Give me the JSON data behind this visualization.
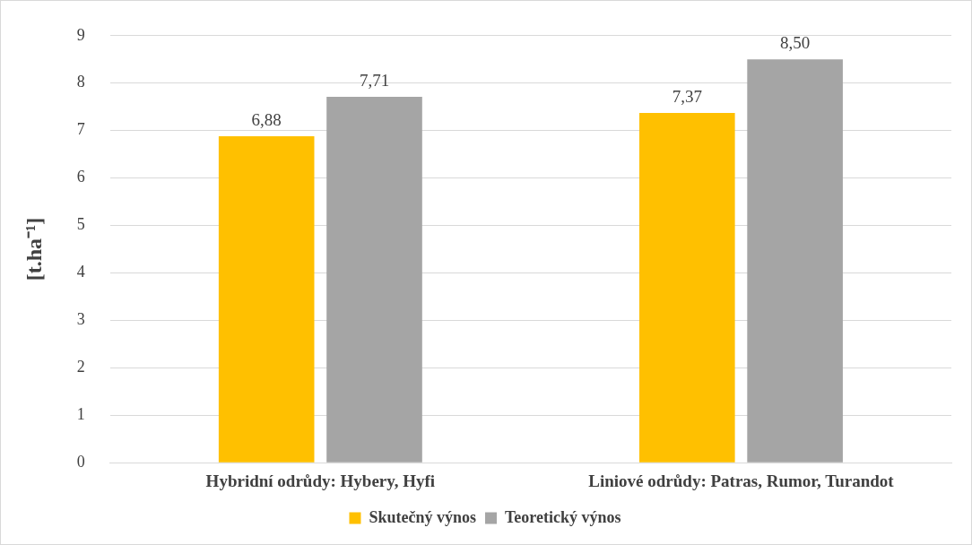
{
  "chart_data": {
    "type": "bar",
    "ylabel": "[t.ha⁻¹]",
    "categories": [
      "Hybridní odrůdy: Hybery, Hyfi",
      "Liniové odrůdy: Patras, Rumor, Turandot"
    ],
    "series": [
      {
        "name": "Skutečný výnos",
        "color": "#ffc000",
        "values": [
          6.88,
          7.37
        ],
        "value_labels": [
          "6,88",
          "7,37"
        ]
      },
      {
        "name": "Teoretický výnos",
        "color": "#a5a5a5",
        "values": [
          7.71,
          8.5
        ],
        "value_labels": [
          "7,71",
          "8,50"
        ]
      }
    ],
    "ylim": [
      0,
      9
    ],
    "yticks": [
      0,
      1,
      2,
      3,
      4,
      5,
      6,
      7,
      8,
      9
    ],
    "grid": "y",
    "legend": "bottom"
  }
}
